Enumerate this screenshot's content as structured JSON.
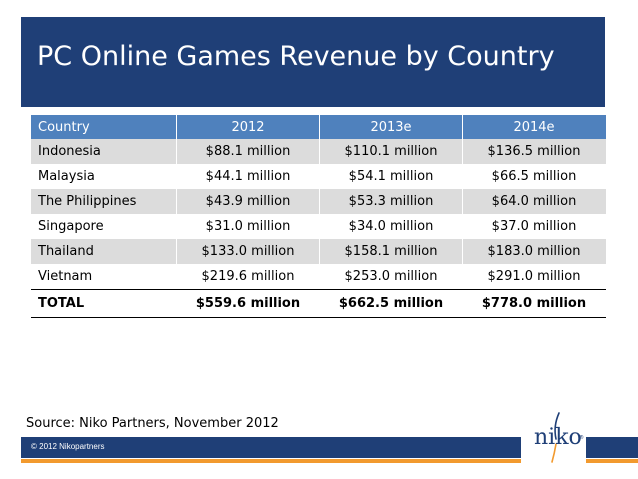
{
  "title": "PC Online Games Revenue by Country",
  "table": {
    "headers": [
      "Country",
      "2012",
      "2013e",
      "2014e"
    ],
    "rows": [
      [
        "Indonesia",
        "$88.1 million",
        "$110.1 million",
        "$136.5 million"
      ],
      [
        "Malaysia",
        "$44.1 million",
        "$54.1 million",
        "$66.5 million"
      ],
      [
        "The Philippines",
        "$43.9 million",
        "$53.3 million",
        "$64.0 million"
      ],
      [
        "Singapore",
        "$31.0 million",
        "$34.0 million",
        "$37.0 million"
      ],
      [
        "Thailand",
        "$133.0 million",
        "$158.1 million",
        "$183.0 million"
      ],
      [
        "Vietnam",
        "$219.6 million",
        "$253.0 million",
        "$291.0 million"
      ]
    ],
    "total": [
      "TOTAL",
      "$559.6 million",
      "$662.5 million",
      "$778.0 million"
    ]
  },
  "source": "Source: Niko Partners, November 2012",
  "footer": {
    "copyright": "© 2012 Nikopartners",
    "logo_text": "niko",
    "logo_mark": "®"
  },
  "colors": {
    "title_bar": "#1f3f77",
    "header_row": "#4f81bd",
    "shade_row": "#dcdcdc",
    "footer_orange": "#f29a2e"
  }
}
